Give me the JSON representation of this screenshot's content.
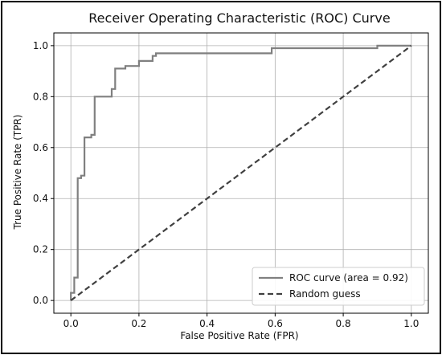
{
  "chart_data": {
    "type": "line",
    "title": "Receiver Operating Characteristic (ROC) Curve",
    "xlabel": "False Positive Rate (FPR)",
    "ylabel": "True Positive Rate (TPR)",
    "xlim": [
      -0.05,
      1.05
    ],
    "ylim": [
      -0.05,
      1.05
    ],
    "x_ticks": [
      0.0,
      0.2,
      0.4,
      0.6,
      0.8,
      1.0
    ],
    "y_ticks": [
      0.0,
      0.2,
      0.4,
      0.6,
      0.8,
      1.0
    ],
    "x_tick_labels": [
      "0.0",
      "0.2",
      "0.4",
      "0.6",
      "0.8",
      "1.0"
    ],
    "y_tick_labels": [
      "0.0",
      "0.2",
      "0.4",
      "0.6",
      "0.8",
      "1.0"
    ],
    "grid": true,
    "legend_position": "bottom-right",
    "series": [
      {
        "name": "ROC curve (area = 0.92)",
        "style": "solid",
        "color": "#808080",
        "x": [
          0.0,
          0.0,
          0.01,
          0.01,
          0.02,
          0.02,
          0.03,
          0.03,
          0.04,
          0.04,
          0.06,
          0.06,
          0.07,
          0.07,
          0.08,
          0.08,
          0.12,
          0.12,
          0.13,
          0.13,
          0.16,
          0.16,
          0.2,
          0.2,
          0.24,
          0.24,
          0.25,
          0.25,
          0.59,
          0.59,
          0.9,
          0.9,
          1.0
        ],
        "y": [
          0.0,
          0.03,
          0.03,
          0.09,
          0.09,
          0.48,
          0.48,
          0.49,
          0.49,
          0.64,
          0.64,
          0.65,
          0.65,
          0.8,
          0.8,
          0.8,
          0.8,
          0.83,
          0.83,
          0.91,
          0.91,
          0.92,
          0.92,
          0.94,
          0.94,
          0.96,
          0.96,
          0.97,
          0.97,
          0.99,
          0.99,
          1.0,
          1.0
        ]
      },
      {
        "name": "Random guess",
        "style": "dashed",
        "color": "#404040",
        "x": [
          0.0,
          1.0
        ],
        "y": [
          0.0,
          1.0
        ]
      }
    ]
  }
}
